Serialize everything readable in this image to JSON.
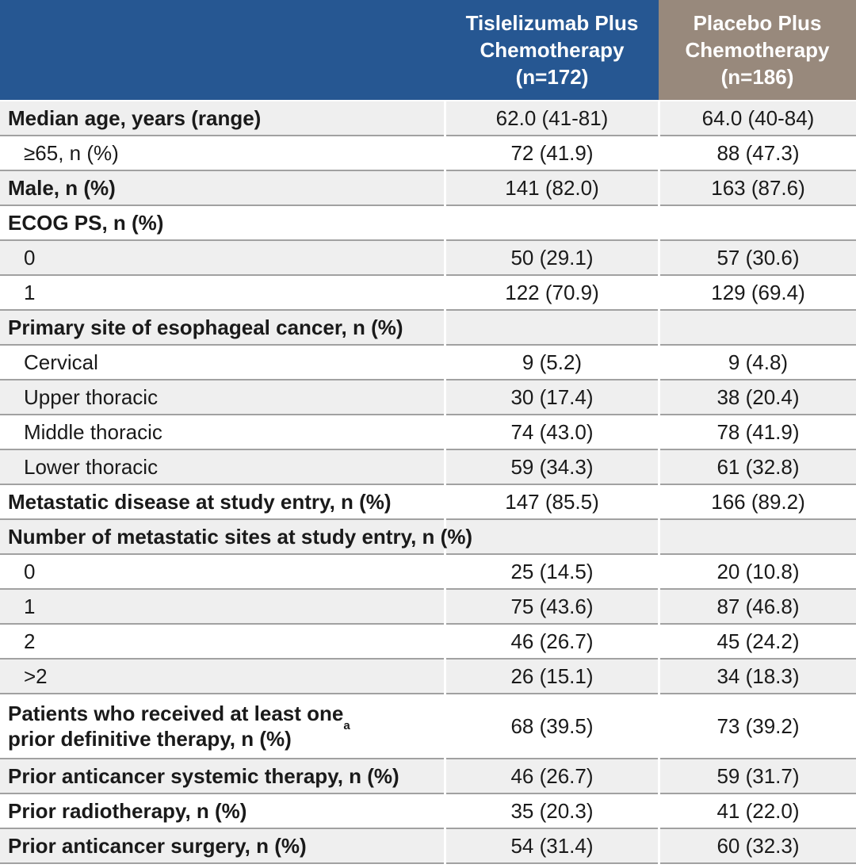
{
  "colors": {
    "blue": "#265792",
    "taupe": "#98897c",
    "rowgray": "#efefef",
    "line": "#a1a1a1",
    "text": "#1a1a1a"
  },
  "table": {
    "header": {
      "col1": "",
      "col2": "Tislelizumab Plus\nChemotherapy\n(n=172)",
      "col3": "Placebo Plus\nChemotherapy\n(n=186)"
    },
    "rows": [
      {
        "label": "Median age, years (range)",
        "c1": "62.0 (41-81)",
        "c2": "64.0 (40-84)"
      },
      {
        "label": "≥65, n (%)",
        "c1": "72 (41.9)",
        "c2": "88 (47.3)"
      },
      {
        "label": "Male, n (%)",
        "c1": "141 (82.0)",
        "c2": "163 (87.6)"
      },
      {
        "label": "ECOG PS, n (%)",
        "c1": "",
        "c2": ""
      },
      {
        "label": "0",
        "c1": "50 (29.1)",
        "c2": "57 (30.6)"
      },
      {
        "label": "1",
        "c1": "122 (70.9)",
        "c2": "129 (69.4)"
      },
      {
        "label": "Primary site of esophageal cancer, n (%)",
        "c1": "",
        "c2": ""
      },
      {
        "label": "Cervical",
        "c1": "9 (5.2)",
        "c2": "9 (4.8)"
      },
      {
        "label": "Upper thoracic",
        "c1": "30 (17.4)",
        "c2": "38 (20.4)"
      },
      {
        "label": "Middle thoracic",
        "c1": "74 (43.0)",
        "c2": "78 (41.9)"
      },
      {
        "label": "Lower thoracic",
        "c1": "59 (34.3)",
        "c2": "61 (32.8)"
      },
      {
        "label": "Metastatic disease at study entry, n (%)",
        "c1": "147 (85.5)",
        "c2": "166 (89.2)"
      },
      {
        "label": "Number of metastatic sites at study entry, n (%)",
        "c1": "",
        "c2": ""
      },
      {
        "label": "0",
        "c1": "25 (14.5)",
        "c2": "20 (10.8)"
      },
      {
        "label": "1",
        "c1": "75 (43.6)",
        "c2": "87 (46.8)"
      },
      {
        "label": "2",
        "c1": "46 (26.7)",
        "c2": "45 (24.2)"
      },
      {
        "label": ">2",
        "c1": "26 (15.1)",
        "c2": "34 (18.3)"
      },
      {
        "label": "Patients who received at least one\nprior definitive therapy, n (%)",
        "sup": "a",
        "c1": "68 (39.5)",
        "c2": "73 (39.2)"
      },
      {
        "label": "Prior anticancer systemic therapy, n (%)",
        "c1": "46 (26.7)",
        "c2": "59 (31.7)"
      },
      {
        "label": "Prior radiotherapy, n (%)",
        "c1": "35 (20.3)",
        "c2": "41 (22.0)"
      },
      {
        "label": "Prior anticancer surgery, n (%)",
        "c1": "54 (31.4)",
        "c2": "60 (32.3)"
      }
    ]
  }
}
